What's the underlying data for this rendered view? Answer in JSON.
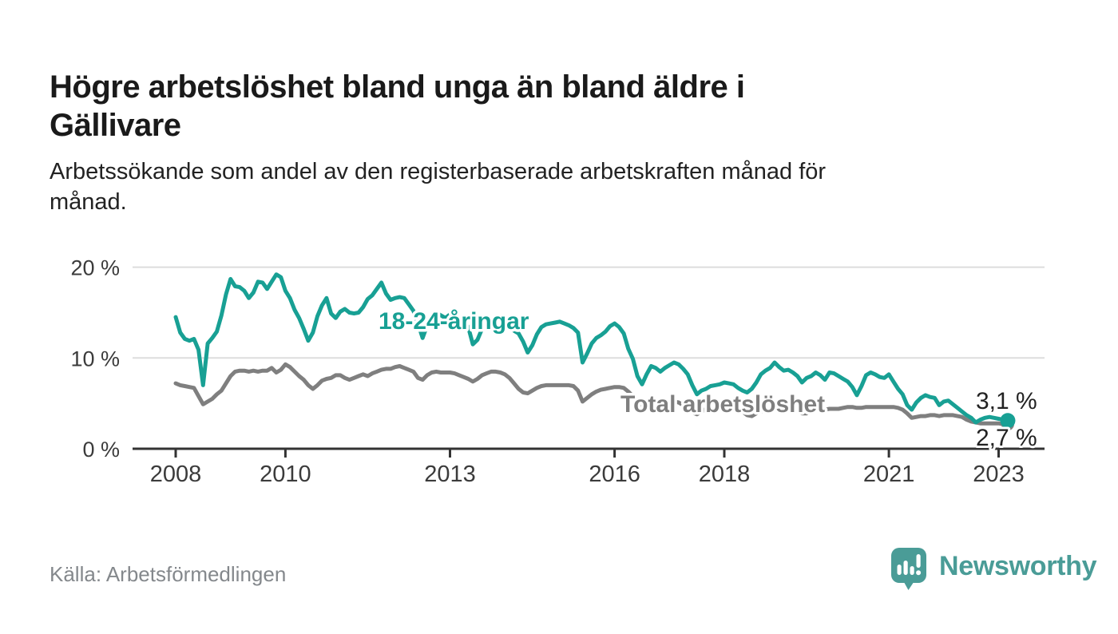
{
  "header": {
    "title_lines": [
      "Högre arbetslöshet bland unga än bland äldre i",
      "Gällivare"
    ],
    "subtitle_lines": [
      "Arbetssökande som andel av den registerbaserade arbetskraften månad för",
      "månad."
    ]
  },
  "footer": {
    "source": "Källa: Arbetsförmedlingen",
    "logo": {
      "text": "Newsworthy",
      "icon": "newsworthy-speech-bubble-barchart-icon",
      "color": "#4A9C97"
    }
  },
  "colors": {
    "accent_teal": "#18A094",
    "total_gray": "#7F7F7F",
    "grid": "#DDDDDD",
    "axis": "#333333",
    "axis_text": "#3B3B3B",
    "end_label_text": "#222222",
    "title_text": "#1A1A1A",
    "source_text": "#84888C"
  },
  "chart_data": {
    "type": "line",
    "unit": "%",
    "frequency": "monthly",
    "start": "2008-01",
    "end": "2023-03",
    "grid": "horizontal-only",
    "legend_position": "inline-labels",
    "y_axis": {
      "tick_labels": [
        "0 %",
        "10 %",
        "20 %"
      ],
      "tick_values": [
        0,
        10,
        20
      ],
      "range": [
        0,
        20.5
      ]
    },
    "x_axis": {
      "tick_labels": [
        "2008",
        "2010",
        "2013",
        "2016",
        "2018",
        "2021",
        "2023"
      ],
      "tick_years": [
        2008,
        2010,
        2013,
        2016,
        2018,
        2021,
        2023
      ]
    },
    "series": [
      {
        "name": "18-24-åringar",
        "color": "#18A094",
        "end_label": "3,1 %",
        "end_value": 3.1,
        "end_dot": true,
        "values": [
          14.5,
          12.8,
          12.1,
          11.9,
          12.1,
          10.9,
          7.0,
          11.6,
          12.2,
          12.9,
          14.7,
          17.0,
          18.7,
          17.9,
          17.8,
          17.4,
          16.6,
          17.2,
          18.4,
          18.3,
          17.6,
          18.4,
          19.2,
          18.9,
          17.4,
          16.6,
          15.3,
          14.4,
          13.2,
          11.9,
          12.8,
          14.6,
          15.8,
          16.6,
          14.9,
          14.4,
          15.1,
          15.4,
          15.0,
          14.9,
          15.0,
          15.6,
          16.5,
          16.9,
          17.6,
          18.3,
          17.1,
          16.4,
          16.6,
          16.7,
          16.6,
          15.9,
          15.2,
          13.8,
          12.2,
          13.6,
          14.6,
          15.0,
          14.7,
          14.4,
          14.8,
          14.6,
          14.3,
          14.0,
          13.4,
          11.5,
          12.0,
          13.2,
          13.8,
          14.1,
          13.9,
          13.7,
          13.6,
          13.4,
          13.0,
          12.7,
          11.8,
          10.6,
          11.4,
          12.6,
          13.4,
          13.7,
          13.8,
          13.9,
          14.0,
          13.8,
          13.6,
          13.3,
          12.8,
          9.5,
          10.5,
          11.6,
          12.2,
          12.5,
          12.9,
          13.5,
          13.8,
          13.4,
          12.7,
          11.0,
          9.9,
          8.0,
          7.1,
          8.2,
          9.1,
          8.9,
          8.5,
          8.9,
          9.2,
          9.5,
          9.3,
          8.8,
          8.2,
          7.0,
          6.0,
          6.4,
          6.6,
          6.9,
          7.0,
          7.1,
          7.3,
          7.2,
          7.1,
          6.7,
          6.4,
          6.2,
          6.6,
          7.3,
          8.2,
          8.6,
          8.9,
          9.5,
          9.0,
          8.6,
          8.7,
          8.4,
          8.0,
          7.3,
          7.8,
          8.0,
          8.4,
          8.1,
          7.6,
          8.4,
          8.3,
          8.0,
          7.7,
          7.4,
          6.8,
          5.9,
          6.9,
          8.1,
          8.4,
          8.2,
          7.9,
          7.8,
          8.2,
          7.4,
          6.6,
          6.0,
          4.8,
          4.3,
          5.1,
          5.6,
          5.9,
          5.7,
          5.6,
          4.8,
          5.2,
          5.3,
          4.9,
          4.5,
          4.1,
          3.7,
          3.4,
          2.9,
          3.2,
          3.4,
          3.5,
          3.4,
          3.3,
          3.2,
          3.1
        ]
      },
      {
        "name": "Total arbetslöshet",
        "color": "#7F7F7F",
        "end_label": "2,7 %",
        "end_value": 2.7,
        "end_dot": true,
        "values": [
          7.2,
          7.0,
          6.9,
          6.8,
          6.7,
          5.8,
          4.9,
          5.2,
          5.5,
          6.0,
          6.4,
          7.2,
          8.0,
          8.5,
          8.6,
          8.6,
          8.5,
          8.6,
          8.5,
          8.6,
          8.6,
          8.9,
          8.4,
          8.7,
          9.3,
          9.0,
          8.5,
          8.0,
          7.6,
          7.0,
          6.6,
          7.0,
          7.5,
          7.7,
          7.8,
          8.1,
          8.1,
          7.8,
          7.6,
          7.8,
          8.0,
          8.2,
          8.0,
          8.3,
          8.5,
          8.7,
          8.8,
          8.8,
          9.0,
          9.1,
          8.9,
          8.7,
          8.5,
          7.8,
          7.6,
          8.1,
          8.4,
          8.5,
          8.4,
          8.4,
          8.4,
          8.3,
          8.1,
          7.9,
          7.7,
          7.4,
          7.7,
          8.1,
          8.3,
          8.5,
          8.5,
          8.4,
          8.2,
          7.8,
          7.2,
          6.6,
          6.2,
          6.1,
          6.4,
          6.7,
          6.9,
          7.0,
          7.0,
          7.0,
          7.0,
          7.0,
          7.0,
          6.9,
          6.4,
          5.2,
          5.6,
          6.0,
          6.3,
          6.5,
          6.6,
          6.7,
          6.8,
          6.8,
          6.7,
          6.3,
          5.8,
          4.8,
          4.5,
          4.9,
          5.2,
          5.3,
          5.2,
          5.2,
          5.2,
          5.2,
          5.1,
          4.8,
          4.5,
          4.0,
          3.8,
          4.1,
          4.4,
          4.6,
          4.6,
          4.7,
          4.7,
          4.7,
          4.6,
          4.4,
          4.1,
          3.7,
          3.6,
          3.9,
          4.1,
          4.3,
          4.3,
          4.4,
          4.5,
          4.5,
          4.4,
          4.3,
          4.1,
          3.9,
          3.9,
          4.1,
          4.2,
          4.3,
          4.3,
          4.4,
          4.4,
          4.4,
          4.5,
          4.6,
          4.6,
          4.5,
          4.5,
          4.6,
          4.6,
          4.6,
          4.6,
          4.6,
          4.6,
          4.6,
          4.5,
          4.3,
          3.9,
          3.4,
          3.5,
          3.6,
          3.6,
          3.7,
          3.7,
          3.6,
          3.7,
          3.7,
          3.7,
          3.6,
          3.5,
          3.2,
          3.0,
          2.9,
          2.8,
          2.8,
          2.8,
          2.8,
          2.8,
          2.7,
          2.7
        ]
      }
    ]
  }
}
